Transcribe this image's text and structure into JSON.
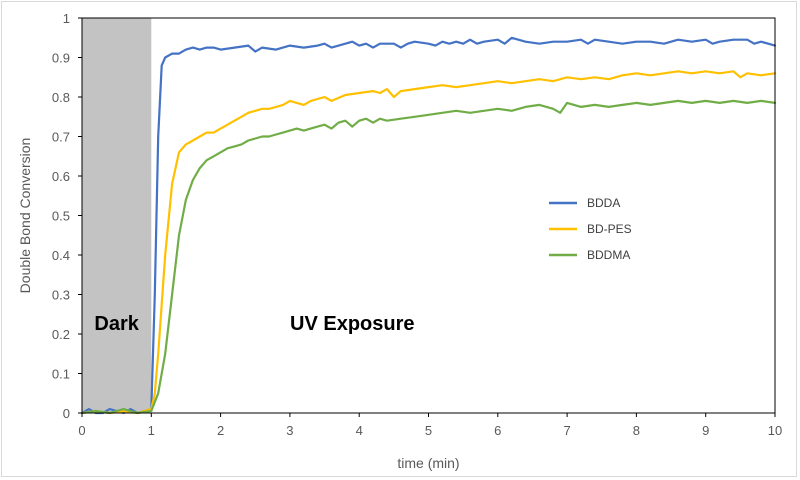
{
  "chart_data": {
    "type": "line",
    "title": "",
    "xlabel": "time (min)",
    "ylabel": "Double Bond Conversion",
    "xlim": [
      0,
      10
    ],
    "ylim": [
      0,
      1
    ],
    "x_ticks": [
      "0",
      "1",
      "2",
      "3",
      "4",
      "5",
      "6",
      "7",
      "8",
      "9",
      "10"
    ],
    "y_ticks": [
      "0",
      "0.1",
      "0.2",
      "0.3",
      "0.4",
      "0.5",
      "0.6",
      "0.7",
      "0.8",
      "0.9",
      "1"
    ],
    "grid": false,
    "legend_position": "right",
    "dark_region": [
      0,
      1
    ],
    "annotations": {
      "dark": "Dark",
      "uv": "UV Exposure"
    },
    "colors": {
      "BDDA": "#4472c4",
      "BD-PES": "#ffc000",
      "BDDMA": "#70ad47",
      "dark_region": "#c3c3c3"
    },
    "series": [
      {
        "name": "BDDA",
        "x": [
          0,
          0.1,
          0.2,
          0.3,
          0.4,
          0.5,
          0.6,
          0.7,
          0.8,
          0.9,
          1.0,
          1.05,
          1.1,
          1.15,
          1.2,
          1.3,
          1.4,
          1.5,
          1.6,
          1.7,
          1.8,
          1.9,
          2.0,
          2.2,
          2.4,
          2.5,
          2.6,
          2.8,
          3.0,
          3.2,
          3.4,
          3.5,
          3.6,
          3.8,
          3.9,
          4.0,
          4.1,
          4.2,
          4.3,
          4.5,
          4.6,
          4.7,
          4.8,
          5.0,
          5.1,
          5.2,
          5.3,
          5.4,
          5.5,
          5.6,
          5.7,
          5.8,
          6.0,
          6.1,
          6.2,
          6.4,
          6.6,
          6.8,
          7.0,
          7.2,
          7.3,
          7.4,
          7.6,
          7.8,
          8.0,
          8.2,
          8.4,
          8.6,
          8.8,
          9.0,
          9.1,
          9.2,
          9.4,
          9.6,
          9.7,
          9.8,
          10.0
        ],
        "y": [
          0.0,
          0.01,
          0.0,
          0.0,
          0.01,
          0.005,
          0.0,
          0.01,
          0.0,
          0.005,
          0.01,
          0.3,
          0.7,
          0.88,
          0.9,
          0.91,
          0.91,
          0.92,
          0.925,
          0.92,
          0.925,
          0.925,
          0.92,
          0.925,
          0.93,
          0.915,
          0.925,
          0.92,
          0.93,
          0.925,
          0.93,
          0.935,
          0.925,
          0.935,
          0.94,
          0.93,
          0.935,
          0.925,
          0.935,
          0.935,
          0.925,
          0.935,
          0.94,
          0.935,
          0.93,
          0.94,
          0.935,
          0.94,
          0.935,
          0.945,
          0.935,
          0.94,
          0.945,
          0.935,
          0.95,
          0.94,
          0.935,
          0.94,
          0.94,
          0.945,
          0.935,
          0.945,
          0.94,
          0.935,
          0.94,
          0.94,
          0.935,
          0.945,
          0.94,
          0.945,
          0.935,
          0.94,
          0.945,
          0.945,
          0.935,
          0.94,
          0.93
        ]
      },
      {
        "name": "BD-PES",
        "x": [
          0,
          0.2,
          0.4,
          0.6,
          0.8,
          1.0,
          1.05,
          1.1,
          1.2,
          1.3,
          1.4,
          1.5,
          1.6,
          1.7,
          1.8,
          1.9,
          2.0,
          2.1,
          2.2,
          2.3,
          2.4,
          2.5,
          2.6,
          2.7,
          2.8,
          2.9,
          3.0,
          3.1,
          3.2,
          3.3,
          3.4,
          3.5,
          3.6,
          3.8,
          4.0,
          4.2,
          4.3,
          4.4,
          4.5,
          4.6,
          4.8,
          5.0,
          5.2,
          5.4,
          5.6,
          5.8,
          6.0,
          6.2,
          6.4,
          6.6,
          6.8,
          7.0,
          7.2,
          7.4,
          7.6,
          7.8,
          8.0,
          8.2,
          8.4,
          8.6,
          8.8,
          9.0,
          9.2,
          9.4,
          9.5,
          9.6,
          9.8,
          10.0
        ],
        "y": [
          0.0,
          0.005,
          0.0,
          0.005,
          0.0,
          0.01,
          0.05,
          0.15,
          0.4,
          0.58,
          0.66,
          0.68,
          0.69,
          0.7,
          0.71,
          0.71,
          0.72,
          0.73,
          0.74,
          0.75,
          0.76,
          0.765,
          0.77,
          0.77,
          0.775,
          0.78,
          0.79,
          0.785,
          0.78,
          0.79,
          0.795,
          0.8,
          0.79,
          0.805,
          0.81,
          0.815,
          0.81,
          0.82,
          0.8,
          0.815,
          0.82,
          0.825,
          0.83,
          0.825,
          0.83,
          0.835,
          0.84,
          0.835,
          0.84,
          0.845,
          0.84,
          0.85,
          0.845,
          0.85,
          0.845,
          0.855,
          0.86,
          0.855,
          0.86,
          0.865,
          0.86,
          0.865,
          0.86,
          0.865,
          0.85,
          0.86,
          0.855,
          0.86
        ]
      },
      {
        "name": "BDDMA",
        "x": [
          0,
          0.2,
          0.4,
          0.6,
          0.8,
          1.0,
          1.1,
          1.2,
          1.3,
          1.4,
          1.5,
          1.6,
          1.7,
          1.8,
          1.9,
          2.0,
          2.1,
          2.2,
          2.3,
          2.4,
          2.5,
          2.6,
          2.7,
          2.8,
          2.9,
          3.0,
          3.1,
          3.2,
          3.3,
          3.4,
          3.5,
          3.6,
          3.7,
          3.8,
          3.9,
          4.0,
          4.1,
          4.2,
          4.3,
          4.4,
          4.6,
          4.8,
          5.0,
          5.2,
          5.4,
          5.6,
          5.8,
          6.0,
          6.2,
          6.4,
          6.6,
          6.8,
          6.9,
          7.0,
          7.2,
          7.4,
          7.6,
          7.8,
          8.0,
          8.2,
          8.4,
          8.6,
          8.8,
          9.0,
          9.2,
          9.4,
          9.6,
          9.8,
          10.0
        ],
        "y": [
          0.0,
          0.005,
          0.0,
          0.01,
          0.0,
          0.005,
          0.05,
          0.15,
          0.3,
          0.45,
          0.54,
          0.59,
          0.62,
          0.64,
          0.65,
          0.66,
          0.67,
          0.675,
          0.68,
          0.69,
          0.695,
          0.7,
          0.7,
          0.705,
          0.71,
          0.715,
          0.72,
          0.715,
          0.72,
          0.725,
          0.73,
          0.72,
          0.735,
          0.74,
          0.725,
          0.74,
          0.745,
          0.735,
          0.745,
          0.74,
          0.745,
          0.75,
          0.755,
          0.76,
          0.765,
          0.76,
          0.765,
          0.77,
          0.765,
          0.775,
          0.78,
          0.77,
          0.76,
          0.785,
          0.775,
          0.78,
          0.775,
          0.78,
          0.785,
          0.78,
          0.785,
          0.79,
          0.785,
          0.79,
          0.785,
          0.79,
          0.785,
          0.79,
          0.785
        ]
      }
    ]
  }
}
